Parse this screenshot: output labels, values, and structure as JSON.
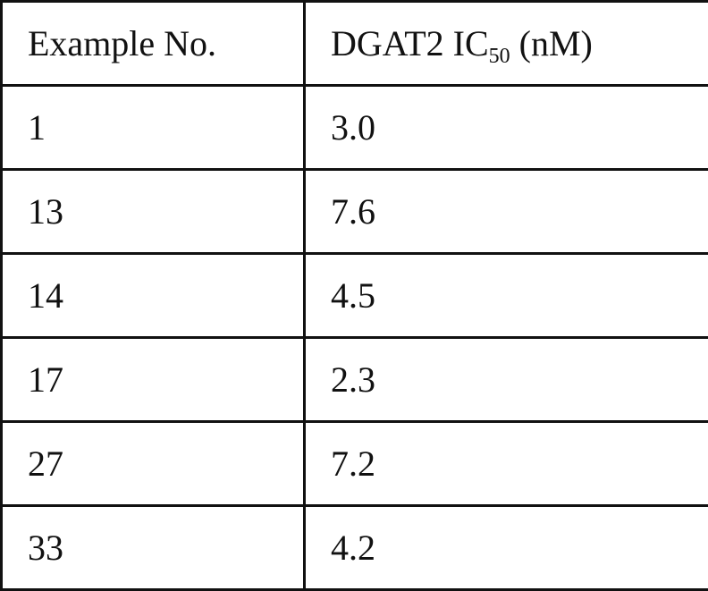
{
  "header": {
    "example_label": "Example No.",
    "ic50_prefix": "DGAT2 IC",
    "ic50_subscript": "50",
    "ic50_suffix": " (nM)"
  },
  "rows": [
    {
      "example": "1",
      "ic50": "3.0"
    },
    {
      "example": "13",
      "ic50": "7.6"
    },
    {
      "example": "14",
      "ic50": "4.5"
    },
    {
      "example": "17",
      "ic50": "2.3"
    },
    {
      "example": "27",
      "ic50": "7.2"
    },
    {
      "example": "33",
      "ic50": "4.2"
    }
  ]
}
